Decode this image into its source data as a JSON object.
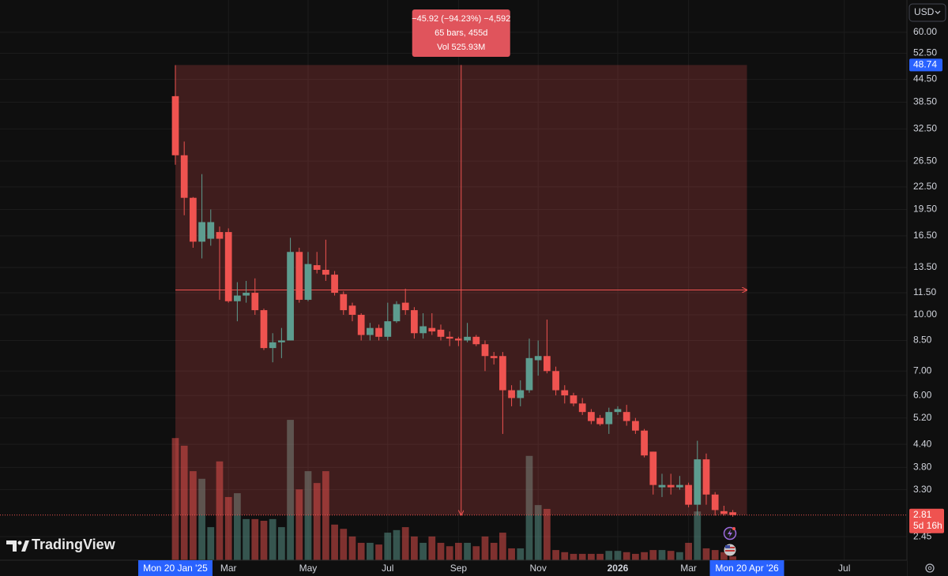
{
  "chart_data": {
    "type": "candlestick",
    "currency": "USD",
    "brand": "TradingView",
    "log_scale": true,
    "grid": true,
    "up_color": "#5d9c8f",
    "down_color": "#ef5350",
    "ylim": [
      2.11,
      73.6
    ],
    "yticks": [
      {
        "value": 60,
        "label": "60.00"
      },
      {
        "value": 52.5,
        "label": "52.50"
      },
      {
        "value": 44.5,
        "label": "44.50"
      },
      {
        "value": 38.5,
        "label": "38.50"
      },
      {
        "value": 32.5,
        "label": "32.50"
      },
      {
        "value": 26.5,
        "label": "26.50"
      },
      {
        "value": 22.5,
        "label": "22.50"
      },
      {
        "value": 19.5,
        "label": "19.50"
      },
      {
        "value": 16.5,
        "label": "16.50"
      },
      {
        "value": 13.5,
        "label": "13.50"
      },
      {
        "value": 11.5,
        "label": "11.50"
      },
      {
        "value": 10,
        "label": "10.00"
      },
      {
        "value": 8.5,
        "label": "8.50"
      },
      {
        "value": 7,
        "label": "7.00"
      },
      {
        "value": 6,
        "label": "6.00"
      },
      {
        "value": 5.2,
        "label": "5.20"
      },
      {
        "value": 4.4,
        "label": "4.40"
      },
      {
        "value": 3.8,
        "label": "3.80"
      },
      {
        "value": 3.3,
        "label": "3.30"
      },
      {
        "value": 2.45,
        "label": "2.45"
      }
    ],
    "xlim": [
      -19.82,
      82.68
    ],
    "xticks": [
      {
        "value": 6,
        "label": "Mar"
      },
      {
        "value": 15,
        "label": "May"
      },
      {
        "value": 24,
        "label": "Jul"
      },
      {
        "value": 32,
        "label": "Sep"
      },
      {
        "value": 41,
        "label": "Nov"
      },
      {
        "value": 50,
        "label": "2026"
      },
      {
        "value": 58,
        "label": "Mar"
      },
      {
        "value": 75.6,
        "label": "Jul"
      }
    ],
    "categories": [
      null,
      null,
      null,
      null,
      null,
      null,
      null,
      null,
      null,
      null,
      null,
      null,
      null,
      null,
      null,
      null,
      null,
      null,
      null,
      null,
      null,
      null,
      null,
      null,
      null,
      null,
      null,
      null,
      null,
      null,
      null,
      null,
      null,
      null,
      null,
      null,
      null,
      null,
      null,
      null,
      null,
      null,
      null,
      null,
      null,
      null,
      null,
      null,
      null,
      null,
      null,
      null,
      null,
      null,
      null,
      null,
      null,
      null,
      null,
      null,
      null,
      null,
      null,
      null
    ],
    "open": [
      40.0,
      27.5,
      21.0,
      15.9,
      16.2,
      16.9,
      16.9,
      10.9,
      11.3,
      11.5,
      10.3,
      8.1,
      8.4,
      8.5,
      14.9,
      11.0,
      13.7,
      13.3,
      12.9,
      11.4,
      10.6,
      10.0,
      8.8,
      9.2,
      8.7,
      9.6,
      10.8,
      10.3,
      8.9,
      9.2,
      9.1,
      8.7,
      8.6,
      8.5,
      8.7,
      8.3,
      7.7,
      7.7,
      6.2,
      5.9,
      6.2,
      7.5,
      7.7,
      7.0,
      6.2,
      6.0,
      5.7,
      5.4,
      5.2,
      5.0,
      5.4,
      5.4,
      5.1,
      4.8,
      4.2,
      3.35,
      3.4,
      3.35,
      3.4,
      3.0,
      4.0,
      3.2,
      2.88,
      2.86
    ],
    "high": [
      48.7,
      30.0,
      21.1,
      24.4,
      19.5,
      17.5,
      17.3,
      12.3,
      12.4,
      12.6,
      10.4,
      8.9,
      9.2,
      16.3,
      15.3,
      14.9,
      14.9,
      16.1,
      13.2,
      11.6,
      10.8,
      10.1,
      9.5,
      9.4,
      10.8,
      10.9,
      11.8,
      10.5,
      10.1,
      10.1,
      9.4,
      9.0,
      8.7,
      9.5,
      8.8,
      8.5,
      7.9,
      7.9,
      6.4,
      6.6,
      8.6,
      8.5,
      9.7,
      7.2,
      6.4,
      6.1,
      5.9,
      5.5,
      5.3,
      5.55,
      5.6,
      5.65,
      5.2,
      4.85,
      4.2,
      3.65,
      3.65,
      3.6,
      3.45,
      4.5,
      4.15,
      3.25,
      2.98,
      2.9
    ],
    "low": [
      25.9,
      18.8,
      15.3,
      14.3,
      15.5,
      11.0,
      10.8,
      9.6,
      10.8,
      10.0,
      8.0,
      7.4,
      7.6,
      8.5,
      10.8,
      10.9,
      13.0,
      12.4,
      11.3,
      10.0,
      9.6,
      8.5,
      8.5,
      8.5,
      8.5,
      9.5,
      10.0,
      8.6,
      8.6,
      8.8,
      8.5,
      8.2,
      8.2,
      8.4,
      8.2,
      7.0,
      7.3,
      4.7,
      5.6,
      5.6,
      6.1,
      6.8,
      6.9,
      6.0,
      5.7,
      5.6,
      5.3,
      5.0,
      4.95,
      4.7,
      5.3,
      4.95,
      4.7,
      4.05,
      3.2,
      3.15,
      3.2,
      3.3,
      2.95,
      2.8,
      3.0,
      2.8,
      2.8,
      2.78
    ],
    "close": [
      27.5,
      21.0,
      15.9,
      18.0,
      18.0,
      16.2,
      10.9,
      11.3,
      11.5,
      10.3,
      8.1,
      8.4,
      8.5,
      14.9,
      11.0,
      13.8,
      13.3,
      12.9,
      11.5,
      10.3,
      10.0,
      8.8,
      9.2,
      8.7,
      9.6,
      10.7,
      10.3,
      8.9,
      9.3,
      9.0,
      8.7,
      8.6,
      8.5,
      8.7,
      8.3,
      7.7,
      7.6,
      6.2,
      5.9,
      6.2,
      7.6,
      7.7,
      7.0,
      6.2,
      6.0,
      5.7,
      5.4,
      5.1,
      5.0,
      5.4,
      5.5,
      5.1,
      4.8,
      4.1,
      3.4,
      3.4,
      3.35,
      3.4,
      3.0,
      4.0,
      3.2,
      2.9,
      2.83,
      2.81
    ],
    "volume_lim": [
      0,
      40
    ],
    "volume": [
      28.8,
      27.0,
      21.0,
      19.2,
      7.8,
      23.3,
      14.9,
      15.8,
      9.7,
      9.7,
      9.3,
      9.7,
      7.8,
      33.1,
      16.7,
      21.0,
      18.2,
      21.0,
      8.4,
      7.4,
      5.6,
      4.1,
      4.1,
      3.7,
      6.5,
      7.1,
      7.8,
      5.6,
      4.1,
      5.6,
      4.1,
      3.3,
      4.1,
      4.1,
      3.3,
      5.6,
      4.1,
      6.5,
      2.8,
      2.8,
      24.6,
      13.0,
      12.1,
      2.4,
      1.9,
      1.5,
      1.5,
      1.5,
      1.5,
      2.2,
      2.2,
      1.9,
      1.5,
      1.9,
      2.4,
      2.4,
      2.2,
      1.9,
      4.1,
      11.5,
      2.8,
      2.4,
      1.9,
      0.9
    ],
    "last_price": 2.81,
    "countdown": "5d 16h",
    "measure": {
      "high": 48.74,
      "start": {
        "value": 0,
        "label": "Mon 20 Jan '25"
      },
      "end": {
        "value": 64.6,
        "label": "Mon 20 Apr '26"
      },
      "lines": [
        "−45.92 (−94.23%) −4,592",
        "65 bars, 455d",
        "Vol 525.93M"
      ]
    }
  }
}
